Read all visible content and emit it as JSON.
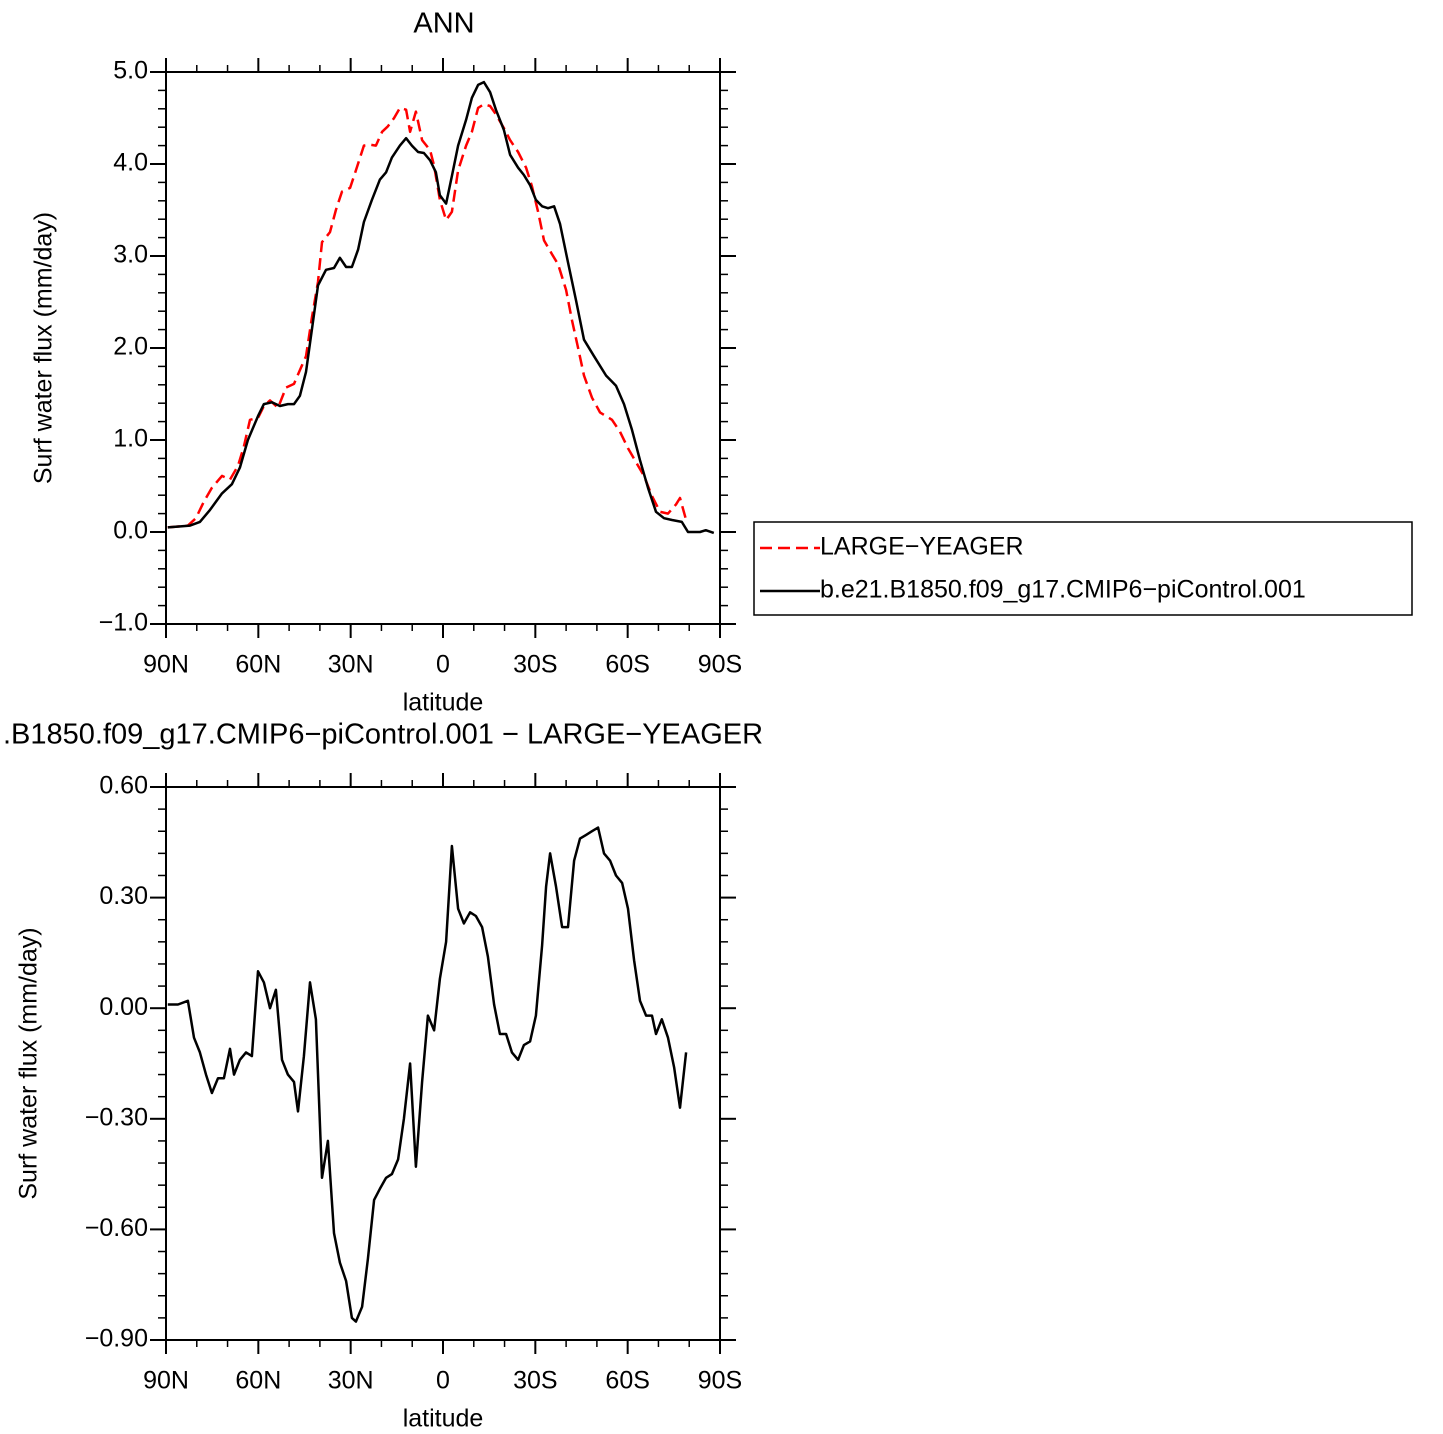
{
  "chart_data": [
    {
      "type": "line",
      "title": "ANN",
      "xlabel": "latitude",
      "ylabel": "Surf water flux (mm/day)",
      "xlim": [
        90,
        -90
      ],
      "xticks": [
        {
          "value": 90,
          "label": "90N"
        },
        {
          "value": 60,
          "label": "60N"
        },
        {
          "value": 30,
          "label": "30N"
        },
        0,
        {
          "value": -30,
          "label": "30S"
        },
        {
          "value": -60,
          "label": "60S"
        },
        {
          "value": -90,
          "label": "90S"
        }
      ],
      "xminorticks": [
        80,
        70,
        50,
        40,
        20,
        10,
        -10,
        -20,
        -40,
        -50,
        -70,
        -80
      ],
      "ylim": [
        -1,
        5
      ],
      "yticks": [
        {
          "value": 5,
          "label": "5.0"
        },
        {
          "value": 4,
          "label": "4.0"
        },
        {
          "value": 3,
          "label": "3.0"
        },
        {
          "value": 2,
          "label": "2.0"
        },
        {
          "value": 1,
          "label": "1.0"
        },
        {
          "value": 0,
          "label": "0.0"
        },
        {
          "value": -1,
          "label": "−1.0"
        }
      ],
      "yminorticks": [
        4.8,
        4.6,
        4.4,
        4.2,
        3.8,
        3.6,
        3.4,
        3.2,
        2.8,
        2.6,
        2.4,
        2.2,
        1.8,
        1.6,
        1.4,
        1.2,
        0.8,
        0.6,
        0.4,
        0.2,
        -0.2,
        -0.4,
        -0.6,
        -0.8
      ],
      "series": [
        {
          "name": "LARGE−YEAGER",
          "color": "#ff0000",
          "dashed": true,
          "x": [
            89.4,
            82.9,
            80.3,
            77.7,
            75.1,
            71.8,
            69.2,
            66.6,
            64.7,
            62.7,
            60.1,
            58.2,
            56.2,
            53.6,
            51.0,
            48.4,
            46.5,
            44.5,
            42.6,
            40.6,
            39.3,
            36.7,
            34.8,
            32.8,
            30.2,
            28.3,
            25.7,
            23.7,
            21.8,
            19.8,
            17.9,
            15.9,
            14.0,
            12.0,
            10.7,
            8.8,
            6.8,
            4.2,
            2.9,
            1.0,
            -1.0,
            -2.9,
            -4.9,
            -7.5,
            -9.4,
            -11.4,
            -13.3,
            -15.3,
            -17.2,
            -19.8,
            -21.8,
            -24.4,
            -27.0,
            -28.9,
            -30.9,
            -32.8,
            -35.4,
            -37.4,
            -40.0,
            -41.9,
            -43.9,
            -45.8,
            -48.4,
            -51.0,
            -54.9,
            -57.5,
            -60.1,
            -62.7,
            -65.3,
            -67.9,
            -70.5,
            -73.1,
            -75.7,
            -77.0,
            -79.0
          ],
          "values": [
            0.05,
            0.07,
            0.15,
            0.33,
            0.48,
            0.61,
            0.57,
            0.72,
            0.93,
            1.22,
            1.24,
            1.37,
            1.43,
            1.35,
            1.57,
            1.61,
            1.76,
            1.91,
            2.33,
            2.72,
            3.15,
            3.26,
            3.5,
            3.7,
            3.74,
            3.93,
            4.2,
            4.21,
            4.2,
            4.35,
            4.41,
            4.5,
            4.61,
            4.59,
            4.35,
            4.57,
            4.26,
            4.15,
            3.98,
            3.61,
            3.39,
            3.48,
            3.93,
            4.2,
            4.35,
            4.61,
            4.65,
            4.63,
            4.54,
            4.39,
            4.26,
            4.13,
            3.96,
            3.76,
            3.48,
            3.17,
            3.02,
            2.91,
            2.63,
            2.3,
            2.0,
            1.7,
            1.46,
            1.3,
            1.22,
            1.09,
            0.91,
            0.76,
            0.61,
            0.39,
            0.22,
            0.2,
            0.3,
            0.37,
            0.13
          ]
        },
        {
          "name": "b.e21.B1850.f09_g17.CMIP6−piControl.001",
          "color": "#000000",
          "dashed": false,
          "x": [
            89.4,
            82.2,
            79.0,
            75.7,
            71.8,
            68.6,
            66.0,
            63.4,
            60.1,
            58.2,
            55.6,
            53.0,
            50.4,
            48.4,
            46.5,
            44.5,
            42.6,
            40.6,
            38.0,
            35.4,
            33.5,
            31.5,
            29.6,
            27.6,
            25.7,
            23.1,
            20.5,
            18.5,
            16.6,
            14.0,
            12.0,
            10.1,
            8.1,
            6.2,
            4.2,
            2.3,
            1.0,
            -1.0,
            -2.9,
            -4.9,
            -7.5,
            -9.4,
            -11.4,
            -13.3,
            -15.3,
            -17.2,
            -19.8,
            -21.8,
            -24.4,
            -26.3,
            -28.3,
            -30.2,
            -32.2,
            -34.1,
            -36.1,
            -38.0,
            -40.6,
            -43.2,
            -45.8,
            -49.1,
            -53.0,
            -56.2,
            -58.8,
            -61.4,
            -64.0,
            -66.6,
            -69.2,
            -71.8,
            -74.4,
            -77.6,
            -79.6,
            -83.5,
            -85.4,
            -88.0
          ],
          "values": [
            0.05,
            0.07,
            0.11,
            0.24,
            0.42,
            0.52,
            0.7,
            1.0,
            1.26,
            1.39,
            1.41,
            1.37,
            1.39,
            1.39,
            1.48,
            1.74,
            2.2,
            2.68,
            2.85,
            2.87,
            2.98,
            2.88,
            2.88,
            3.07,
            3.37,
            3.61,
            3.83,
            3.91,
            4.07,
            4.2,
            4.28,
            4.2,
            4.13,
            4.12,
            4.04,
            3.91,
            3.66,
            3.57,
            3.87,
            4.2,
            4.48,
            4.72,
            4.86,
            4.89,
            4.78,
            4.59,
            4.37,
            4.1,
            3.96,
            3.88,
            3.77,
            3.61,
            3.54,
            3.52,
            3.54,
            3.35,
            2.93,
            2.52,
            2.09,
            1.91,
            1.7,
            1.59,
            1.39,
            1.11,
            0.78,
            0.48,
            0.22,
            0.15,
            0.13,
            0.11,
            0.0,
            0.0,
            0.02,
            -0.01
          ]
        }
      ]
    },
    {
      "type": "line",
      "title": ".B1850.f09_g17.CMIP6−piControl.001 − LARGE−YEAGER",
      "xlabel": "latitude",
      "ylabel": "Surf water flux (mm/day)",
      "xlim": [
        90,
        -90
      ],
      "xticks": [
        {
          "value": 90,
          "label": "90N"
        },
        {
          "value": 60,
          "label": "60N"
        },
        {
          "value": 30,
          "label": "30N"
        },
        0,
        {
          "value": -30,
          "label": "30S"
        },
        {
          "value": -60,
          "label": "60S"
        },
        {
          "value": -90,
          "label": "90S"
        }
      ],
      "xminorticks": [
        80,
        70,
        50,
        40,
        20,
        10,
        -10,
        -20,
        -40,
        -50,
        -70,
        -80
      ],
      "ylim": [
        -0.9,
        0.6
      ],
      "yticks": [
        {
          "value": 0.6,
          "label": "0.60"
        },
        {
          "value": 0.3,
          "label": "0.30"
        },
        {
          "value": 0,
          "label": "0.00"
        },
        {
          "value": -0.3,
          "label": "−0.30"
        },
        {
          "value": -0.6,
          "label": "−0.60"
        },
        {
          "value": -0.9,
          "label": "−0.90"
        }
      ],
      "yminorticks": [
        0.54,
        0.48,
        0.42,
        0.36,
        0.24,
        0.18,
        0.12,
        0.06,
        -0.06,
        -0.12,
        -0.18,
        -0.24,
        -0.36,
        -0.42,
        -0.48,
        -0.54,
        -0.66,
        -0.72,
        -0.78,
        -0.84
      ],
      "series": [
        {
          "color": "#000000",
          "dashed": false,
          "x": [
            89.4,
            86.1,
            82.9,
            80.9,
            79.0,
            77.0,
            75.1,
            73.1,
            71.2,
            69.2,
            67.9,
            66.0,
            64.0,
            62.1,
            60.1,
            58.2,
            56.2,
            54.3,
            52.3,
            50.4,
            48.4,
            47.1,
            45.2,
            43.2,
            41.3,
            39.3,
            37.4,
            35.4,
            33.5,
            31.5,
            29.6,
            28.3,
            26.3,
            24.4,
            22.4,
            20.5,
            18.5,
            16.6,
            14.6,
            12.7,
            10.7,
            8.8,
            6.8,
            4.9,
            2.9,
            1.0,
            -1.0,
            -2.9,
            -4.9,
            -6.8,
            -8.8,
            -10.7,
            -12.7,
            -14.6,
            -16.6,
            -18.5,
            -20.5,
            -22.4,
            -24.4,
            -26.3,
            -28.3,
            -30.2,
            -32.2,
            -33.5,
            -34.8,
            -36.7,
            -38.7,
            -40.6,
            -42.6,
            -44.5,
            -46.5,
            -48.4,
            -50.4,
            -52.3,
            -54.3,
            -56.2,
            -58.2,
            -60.1,
            -62.1,
            -64.0,
            -66.0,
            -67.9,
            -69.2,
            -71.1,
            -73.1,
            -75.1,
            -77.0,
            -79.0
          ],
          "values": [
            0.01,
            0.01,
            0.02,
            -0.08,
            -0.12,
            -0.18,
            -0.23,
            -0.19,
            -0.19,
            -0.11,
            -0.18,
            -0.14,
            -0.12,
            -0.13,
            0.1,
            0.07,
            0.0,
            0.05,
            -0.14,
            -0.18,
            -0.2,
            -0.28,
            -0.13,
            0.07,
            -0.03,
            -0.46,
            -0.36,
            -0.61,
            -0.69,
            -0.74,
            -0.84,
            -0.85,
            -0.81,
            -0.68,
            -0.52,
            -0.49,
            -0.46,
            -0.45,
            -0.41,
            -0.3,
            -0.15,
            -0.43,
            -0.2,
            -0.02,
            -0.06,
            0.08,
            0.18,
            0.44,
            0.27,
            0.23,
            0.26,
            0.25,
            0.22,
            0.14,
            0.01,
            -0.07,
            -0.07,
            -0.12,
            -0.14,
            -0.1,
            -0.09,
            -0.02,
            0.17,
            0.33,
            0.42,
            0.33,
            0.22,
            0.22,
            0.4,
            0.46,
            0.47,
            0.48,
            0.49,
            0.42,
            0.4,
            0.36,
            0.34,
            0.27,
            0.13,
            0.02,
            -0.02,
            -0.02,
            -0.07,
            -0.03,
            -0.08,
            -0.16,
            -0.27,
            -0.12
          ]
        }
      ]
    }
  ]
}
